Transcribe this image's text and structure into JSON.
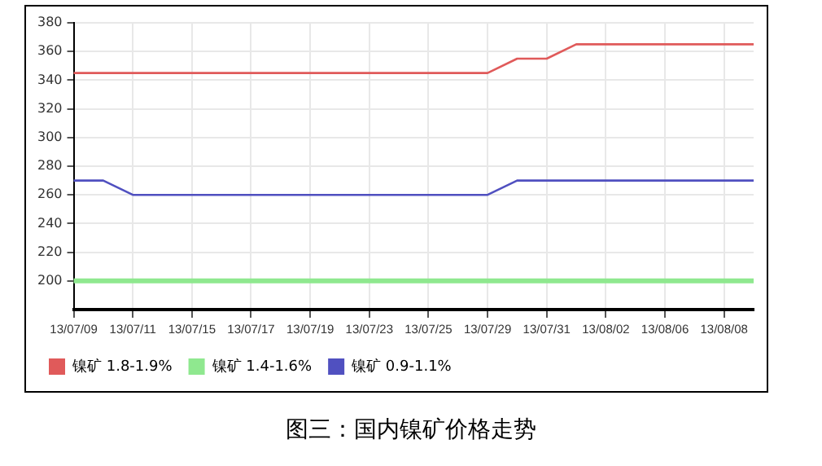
{
  "chart_data": {
    "type": "line",
    "title": "图三：国内镍矿价格走势",
    "categories": [
      "13/07/09",
      null,
      "13/07/11",
      null,
      "13/07/15",
      null,
      "13/07/17",
      null,
      "13/07/19",
      null,
      "13/07/23",
      null,
      "13/07/25",
      null,
      "13/07/29",
      null,
      "13/07/31",
      null,
      "13/08/02",
      null,
      "13/08/06",
      null,
      "13/08/08",
      null
    ],
    "series": [
      {
        "name": "镍矿 1.8-1.9%",
        "color": "#e05a5a",
        "values": [
          345,
          345,
          345,
          345,
          345,
          345,
          345,
          345,
          345,
          345,
          345,
          345,
          345,
          345,
          345,
          355,
          355,
          365,
          365,
          365,
          365,
          365,
          365,
          365
        ]
      },
      {
        "name": "镍矿 1.4-1.6%",
        "color": "#8fe88f",
        "values": [
          200,
          200,
          200,
          200,
          200,
          200,
          200,
          200,
          200,
          200,
          200,
          200,
          200,
          200,
          200,
          200,
          200,
          200,
          200,
          200,
          200,
          200,
          200,
          200
        ]
      },
      {
        "name": "镍矿 0.9-1.1%",
        "color": "#5050c0",
        "values": [
          270,
          270,
          260,
          260,
          260,
          260,
          260,
          260,
          260,
          260,
          260,
          260,
          260,
          260,
          260,
          270,
          270,
          270,
          270,
          270,
          270,
          270,
          270,
          270
        ]
      }
    ],
    "ylim": [
      180,
      380
    ],
    "yticks": [
      200,
      220,
      240,
      260,
      280,
      300,
      320,
      340,
      360,
      380
    ],
    "grid": true,
    "legend": "bottom left",
    "marker": "none",
    "line_style": "solid"
  }
}
